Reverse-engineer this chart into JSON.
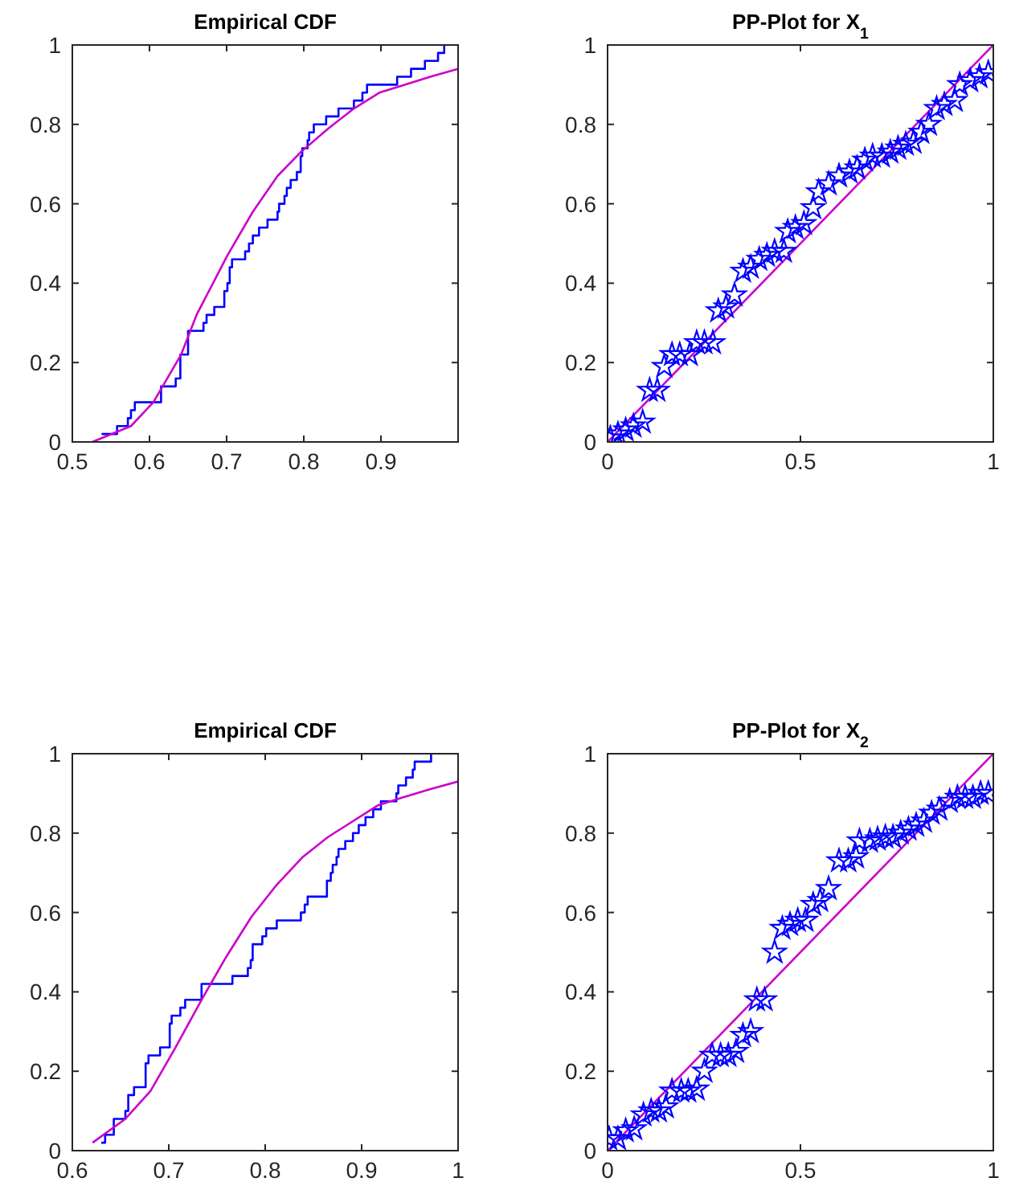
{
  "chart_data": [
    {
      "type": "step",
      "title": "Empirical CDF",
      "xlim": [
        0.5,
        1
      ],
      "xticks": [
        0.5,
        0.6,
        0.7,
        0.8,
        0.9
      ],
      "ylim": [
        0,
        1
      ],
      "yticks": [
        0,
        0.2,
        0.4,
        0.6,
        0.8,
        1
      ],
      "series": [
        {
          "color": "#0000ff",
          "x": [
            0.538,
            0.558,
            0.572,
            0.576,
            0.581,
            0.615,
            0.634,
            0.64,
            0.65,
            0.67,
            0.674,
            0.684,
            0.697,
            0.701,
            0.704,
            0.707,
            0.724,
            0.729,
            0.734,
            0.742,
            0.753,
            0.766,
            0.768,
            0.775,
            0.778,
            0.783,
            0.791,
            0.796,
            0.798,
            0.805,
            0.807,
            0.813,
            0.829,
            0.845,
            0.865,
            0.876,
            0.882,
            0.921,
            0.939,
            0.957,
            0.974,
            0.982
          ],
          "values": [
            0.02,
            0.04,
            0.06,
            0.08,
            0.1,
            0.14,
            0.16,
            0.22,
            0.28,
            0.3,
            0.32,
            0.34,
            0.38,
            0.4,
            0.44,
            0.46,
            0.48,
            0.5,
            0.52,
            0.54,
            0.56,
            0.58,
            0.6,
            0.62,
            0.64,
            0.66,
            0.68,
            0.72,
            0.74,
            0.76,
            0.78,
            0.8,
            0.82,
            0.84,
            0.86,
            0.88,
            0.9,
            0.92,
            0.94,
            0.96,
            0.98,
            1
          ]
        },
        {
          "type": "line",
          "color": "#cc00cc",
          "x": [
            0.526,
            0.576,
            0.605,
            0.641,
            0.661,
            0.701,
            0.734,
            0.766,
            0.796,
            0.832,
            0.865,
            0.898,
            0.931,
            0.964,
            1
          ],
          "values": [
            0,
            0.04,
            0.1,
            0.22,
            0.32,
            0.47,
            0.58,
            0.67,
            0.73,
            0.79,
            0.84,
            0.88,
            0.9,
            0.92,
            0.94
          ]
        }
      ]
    },
    {
      "type": "scatter",
      "title": "PP-Plot for X$_{1}$",
      "xlim": [
        0,
        1
      ],
      "xticks": [
        0,
        0.5,
        1
      ],
      "ylim": [
        0,
        1
      ],
      "yticks": [
        0,
        0.2,
        0.4,
        0.6,
        0.8,
        1
      ],
      "series": [
        {
          "type": "line",
          "color": "#cc00cc",
          "x": [
            0,
            1
          ],
          "values": [
            0,
            1
          ]
        },
        {
          "marker": "star",
          "color": "#0000ff",
          "x": [
            0.007,
            0.027,
            0.047,
            0.067,
            0.091,
            0.109,
            0.129,
            0.147,
            0.167,
            0.187,
            0.213,
            0.231,
            0.251,
            0.273,
            0.287,
            0.307,
            0.329,
            0.351,
            0.371,
            0.393,
            0.413,
            0.433,
            0.457,
            0.467,
            0.487,
            0.509,
            0.533,
            0.547,
            0.573,
            0.6,
            0.627,
            0.647,
            0.667,
            0.687,
            0.711,
            0.733,
            0.753,
            0.773,
            0.793,
            0.813,
            0.833,
            0.853,
            0.873,
            0.9,
            0.913,
            0.94,
            0.964,
            0.987
          ],
          "values": [
            0.01,
            0.02,
            0.03,
            0.04,
            0.05,
            0.13,
            0.13,
            0.19,
            0.22,
            0.22,
            0.22,
            0.25,
            0.25,
            0.25,
            0.33,
            0.34,
            0.37,
            0.43,
            0.44,
            0.46,
            0.47,
            0.48,
            0.48,
            0.53,
            0.54,
            0.55,
            0.59,
            0.63,
            0.65,
            0.67,
            0.68,
            0.69,
            0.71,
            0.72,
            0.72,
            0.73,
            0.74,
            0.75,
            0.755,
            0.78,
            0.8,
            0.84,
            0.85,
            0.86,
            0.9,
            0.91,
            0.92,
            0.93
          ]
        }
      ]
    },
    {
      "type": "step",
      "title": "Empirical CDF",
      "xlim": [
        0.6,
        1
      ],
      "xticks": [
        0.6,
        0.7,
        0.8,
        0.9,
        1
      ],
      "ylim": [
        0,
        1
      ],
      "yticks": [
        0,
        0.2,
        0.4,
        0.6,
        0.8,
        1
      ],
      "series": [
        {
          "color": "#0000ff",
          "x": [
            0.63,
            0.634,
            0.643,
            0.655,
            0.658,
            0.664,
            0.676,
            0.679,
            0.691,
            0.701,
            0.703,
            0.712,
            0.717,
            0.734,
            0.766,
            0.782,
            0.785,
            0.787,
            0.797,
            0.801,
            0.812,
            0.837,
            0.841,
            0.844,
            0.864,
            0.868,
            0.87,
            0.874,
            0.876,
            0.883,
            0.891,
            0.897,
            0.904,
            0.912,
            0.92,
            0.936,
            0.938,
            0.946,
            0.953,
            0.955,
            0.972
          ],
          "values": [
            0.02,
            0.04,
            0.08,
            0.1,
            0.14,
            0.16,
            0.22,
            0.24,
            0.26,
            0.32,
            0.34,
            0.36,
            0.38,
            0.42,
            0.44,
            0.46,
            0.48,
            0.52,
            0.54,
            0.56,
            0.58,
            0.6,
            0.62,
            0.64,
            0.68,
            0.7,
            0.72,
            0.74,
            0.76,
            0.78,
            0.8,
            0.82,
            0.84,
            0.86,
            0.88,
            0.9,
            0.92,
            0.94,
            0.96,
            0.98,
            1
          ]
        },
        {
          "type": "line",
          "color": "#cc00cc",
          "x": [
            0.621,
            0.655,
            0.681,
            0.707,
            0.734,
            0.76,
            0.786,
            0.812,
            0.839,
            0.865,
            0.891,
            0.917,
            0.943,
            0.97,
            1
          ],
          "values": [
            0.02,
            0.08,
            0.15,
            0.26,
            0.38,
            0.49,
            0.59,
            0.67,
            0.74,
            0.79,
            0.83,
            0.87,
            0.89,
            0.91,
            0.93
          ]
        }
      ]
    },
    {
      "type": "scatter",
      "title": "PP-Plot for X$_{2}$",
      "xlim": [
        0,
        1
      ],
      "xticks": [
        0,
        0.5,
        1
      ],
      "ylim": [
        0,
        1
      ],
      "yticks": [
        0,
        0.2,
        0.4,
        0.6,
        0.8,
        1
      ],
      "series": [
        {
          "type": "line",
          "color": "#cc00cc",
          "x": [
            0,
            1
          ],
          "values": [
            0,
            1
          ]
        },
        {
          "marker": "star",
          "color": "#0000ff",
          "x": [
            0.004,
            0.027,
            0.047,
            0.069,
            0.093,
            0.113,
            0.133,
            0.151,
            0.167,
            0.191,
            0.209,
            0.231,
            0.251,
            0.271,
            0.293,
            0.313,
            0.333,
            0.351,
            0.371,
            0.387,
            0.407,
            0.433,
            0.453,
            0.473,
            0.493,
            0.513,
            0.533,
            0.551,
            0.573,
            0.6,
            0.624,
            0.644,
            0.653,
            0.68,
            0.7,
            0.72,
            0.74,
            0.76,
            0.78,
            0.8,
            0.82,
            0.84,
            0.86,
            0.887,
            0.907,
            0.927,
            0.947,
            0.967,
            0.987
          ],
          "values": [
            0.03,
            0.03,
            0.05,
            0.055,
            0.09,
            0.1,
            0.1,
            0.11,
            0.15,
            0.15,
            0.15,
            0.155,
            0.2,
            0.24,
            0.24,
            0.24,
            0.25,
            0.29,
            0.3,
            0.38,
            0.38,
            0.5,
            0.56,
            0.57,
            0.58,
            0.58,
            0.62,
            0.63,
            0.66,
            0.73,
            0.73,
            0.74,
            0.78,
            0.78,
            0.785,
            0.79,
            0.79,
            0.8,
            0.81,
            0.82,
            0.83,
            0.85,
            0.86,
            0.88,
            0.89,
            0.89,
            0.89,
            0.9,
            0.9
          ]
        }
      ]
    }
  ]
}
